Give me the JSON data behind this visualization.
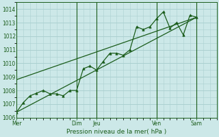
{
  "xlabel": "Pression niveau de la mer( hPa )",
  "bg_color": "#cce8e8",
  "plot_bg_color": "#cce8e8",
  "grid_color": "#aad0d0",
  "line_color": "#1a5c1a",
  "marker_color": "#1a5c1a",
  "ylim": [
    1006,
    1014.5
  ],
  "yticks": [
    1006,
    1007,
    1008,
    1009,
    1010,
    1011,
    1012,
    1013,
    1014
  ],
  "xlim": [
    0,
    30
  ],
  "vline_positions": [
    0,
    9,
    12,
    21,
    27
  ],
  "xtick_positions": [
    0,
    9,
    12,
    21,
    27
  ],
  "xtick_labels": [
    "Mer",
    "Dim",
    "Jeu",
    "Ven",
    "Sam"
  ],
  "detailed_x": [
    0,
    1,
    2,
    3,
    4,
    5,
    6,
    7,
    8,
    9,
    10,
    11,
    12,
    13,
    14,
    15,
    16,
    17,
    18,
    19,
    20,
    21,
    22,
    23,
    24,
    25,
    26,
    27
  ],
  "detailed_y": [
    1006.4,
    1007.1,
    1007.6,
    1007.8,
    1008.0,
    1007.75,
    1007.75,
    1007.6,
    1008.0,
    1008.0,
    1009.6,
    1009.8,
    1009.5,
    1010.15,
    1010.75,
    1010.75,
    1010.6,
    1011.0,
    1012.7,
    1012.5,
    1012.7,
    1013.3,
    1013.8,
    1012.6,
    1013.0,
    1012.1,
    1013.55,
    1013.4
  ],
  "trend1_x": [
    0,
    27
  ],
  "trend1_y": [
    1006.4,
    1013.4
  ],
  "trend2_x": [
    0,
    27
  ],
  "trend2_y": [
    1008.8,
    1013.4
  ]
}
